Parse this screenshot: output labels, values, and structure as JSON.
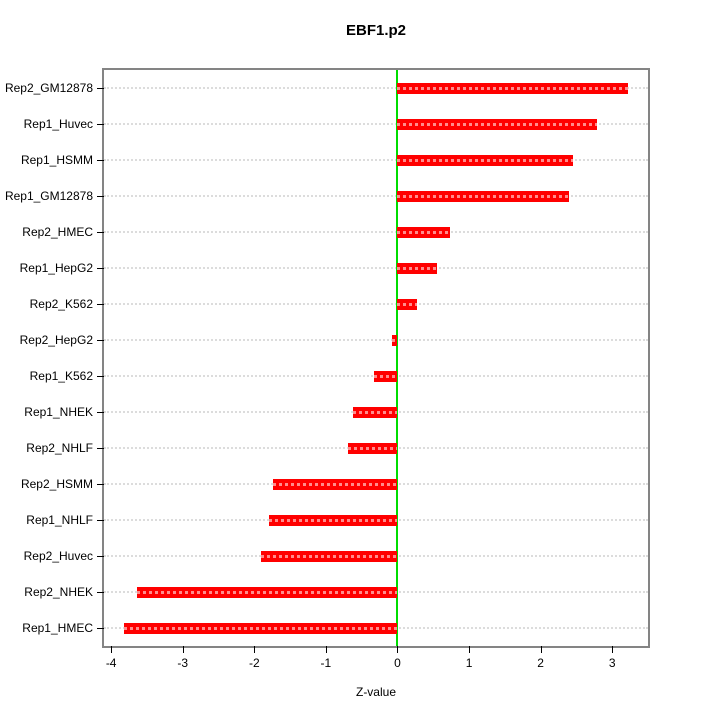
{
  "chart_data": {
    "type": "bar",
    "orientation": "horizontal",
    "title": "EBF1.p2",
    "xlabel": "Z-value",
    "ylabel": "",
    "categories": [
      "Rep2_GM12878",
      "Rep1_Huvec",
      "Rep1_HSMM",
      "Rep1_GM12878",
      "Rep2_HMEC",
      "Rep1_HepG2",
      "Rep2_K562",
      "Rep2_HepG2",
      "Rep1_K562",
      "Rep1_NHEK",
      "Rep2_NHLF",
      "Rep2_HSMM",
      "Rep1_NHLF",
      "Rep2_Huvec",
      "Rep2_NHEK",
      "Rep1_HMEC"
    ],
    "values": [
      3.22,
      2.79,
      2.45,
      2.4,
      0.73,
      0.55,
      0.27,
      -0.08,
      -0.33,
      -0.62,
      -0.69,
      -1.74,
      -1.8,
      -1.91,
      -3.64,
      -3.82
    ],
    "xlim": [
      -4.1,
      3.5
    ],
    "xticks": [
      -4,
      -3,
      -2,
      -1,
      0,
      1,
      2,
      3
    ],
    "grid": true,
    "gridline_style": "dotted",
    "legend": "none",
    "colors": {
      "bar": "#ff0000",
      "zero_line": "#00dd00",
      "gridline": "#dcdcdc",
      "border": "#848484",
      "text": "#000000",
      "background": "#ffffff"
    }
  }
}
